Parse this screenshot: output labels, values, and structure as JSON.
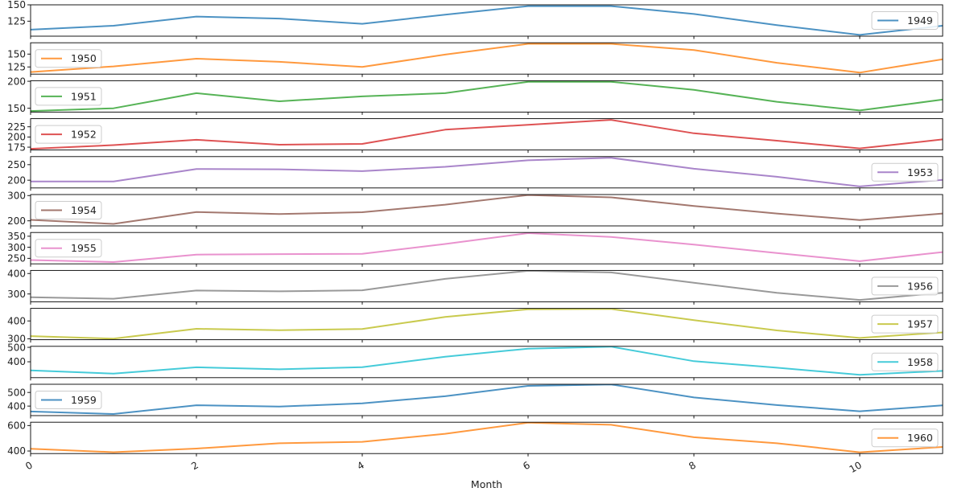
{
  "chart_data": {
    "type": "line",
    "subplots": true,
    "xlabel": "Month",
    "x": [
      0,
      1,
      2,
      3,
      4,
      5,
      6,
      7,
      8,
      9,
      10,
      11
    ],
    "xlim": [
      0,
      11
    ],
    "xticks": [
      0,
      2,
      4,
      6,
      8,
      10
    ],
    "grid": false,
    "series": [
      {
        "name": "1949",
        "color": "#1f77b4",
        "values": [
          112,
          118,
          132,
          129,
          121,
          135,
          148,
          148,
          136,
          119,
          104,
          118
        ],
        "ylim": [
          102,
          150
        ],
        "yticks": [
          125,
          150
        ],
        "legend": "right"
      },
      {
        "name": "1950",
        "color": "#ff7f0e",
        "values": [
          115,
          126,
          141,
          135,
          125,
          149,
          170,
          170,
          158,
          133,
          114,
          140
        ],
        "ylim": [
          111,
          172
        ],
        "yticks": [
          125,
          150
        ],
        "legend": "left"
      },
      {
        "name": "1951",
        "color": "#2ca02c",
        "values": [
          145,
          150,
          178,
          163,
          172,
          178,
          199,
          199,
          184,
          162,
          146,
          166
        ],
        "ylim": [
          143,
          201
        ],
        "yticks": [
          150,
          200
        ],
        "legend": "left"
      },
      {
        "name": "1952",
        "color": "#d62728",
        "values": [
          171,
          180,
          193,
          181,
          183,
          218,
          230,
          242,
          209,
          191,
          172,
          194
        ],
        "ylim": [
          168,
          245
        ],
        "yticks": [
          175,
          200,
          225
        ],
        "legend": "left"
      },
      {
        "name": "1953",
        "color": "#9467bd",
        "values": [
          196,
          196,
          236,
          235,
          229,
          243,
          264,
          272,
          237,
          211,
          180,
          201
        ],
        "ylim": [
          175,
          276
        ],
        "yticks": [
          200,
          250
        ],
        "legend": "right"
      },
      {
        "name": "1954",
        "color": "#8c564b",
        "values": [
          204,
          188,
          235,
          227,
          234,
          264,
          302,
          293,
          259,
          229,
          203,
          229
        ],
        "ylim": [
          180,
          304
        ],
        "yticks": [
          200,
          300
        ],
        "legend": "left"
      },
      {
        "name": "1955",
        "color": "#e377c2",
        "values": [
          242,
          233,
          267,
          269,
          270,
          315,
          364,
          347,
          312,
          274,
          237,
          278
        ],
        "ylim": [
          225,
          367
        ],
        "yticks": [
          250,
          300,
          350
        ],
        "legend": "left"
      },
      {
        "name": "1956",
        "color": "#7f7f7f",
        "values": [
          284,
          277,
          317,
          313,
          318,
          374,
          413,
          405,
          355,
          306,
          271,
          306
        ],
        "ylim": [
          262,
          415
        ],
        "yticks": [
          300,
          400
        ],
        "legend": "right"
      },
      {
        "name": "1957",
        "color": "#bcbd22",
        "values": [
          315,
          301,
          356,
          348,
          355,
          422,
          465,
          467,
          404,
          347,
          305,
          336
        ],
        "ylim": [
          295,
          470
        ],
        "yticks": [
          300,
          400
        ],
        "legend": "right"
      },
      {
        "name": "1958",
        "color": "#17becf",
        "values": [
          340,
          318,
          362,
          348,
          363,
          435,
          491,
          505,
          404,
          359,
          310,
          337
        ],
        "ylim": [
          290,
          507
        ],
        "yticks": [
          400,
          500
        ],
        "legend": "right"
      },
      {
        "name": "1959",
        "color": "#1f77b4",
        "values": [
          360,
          342,
          406,
          396,
          420,
          472,
          548,
          559,
          463,
          407,
          362,
          405
        ],
        "ylim": [
          330,
          560
        ],
        "yticks": [
          400,
          500
        ],
        "legend": "left"
      },
      {
        "name": "1960",
        "color": "#ff7f0e",
        "values": [
          417,
          391,
          419,
          461,
          472,
          535,
          622,
          606,
          508,
          461,
          390,
          432
        ],
        "ylim": [
          380,
          626
        ],
        "yticks": [
          400,
          600
        ],
        "legend": "right"
      }
    ]
  }
}
